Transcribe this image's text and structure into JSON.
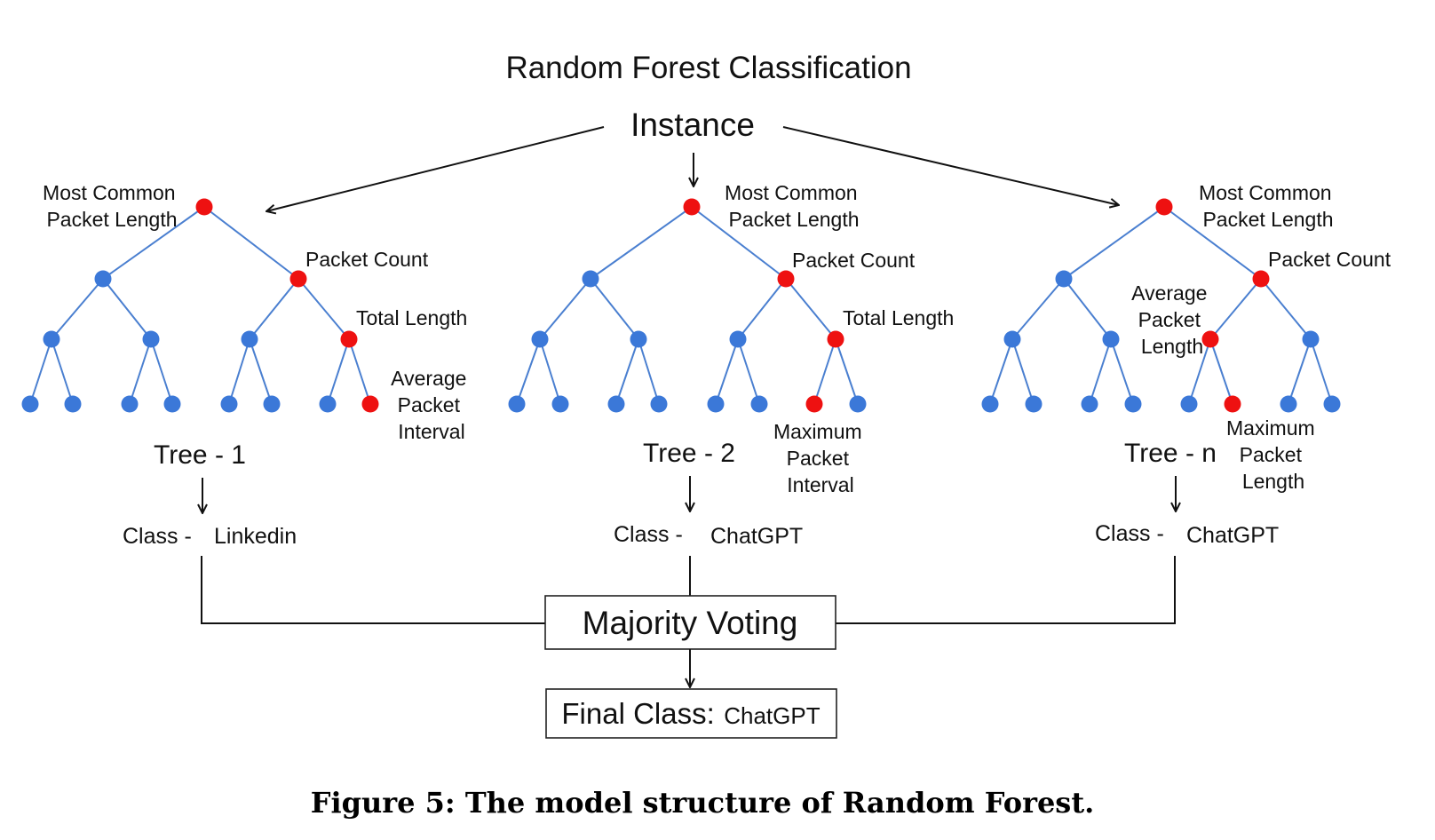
{
  "title": "Random Forest Classification",
  "instance_label": "Instance",
  "colors": {
    "path_node": "#ee1111",
    "other_node": "#3b78d8",
    "edge": "#4a7fd0"
  },
  "trees": [
    {
      "name": "Tree - 1",
      "labels": {
        "root": [
          "Most Common",
          "Packet Length"
        ],
        "second": [
          "Packet Count"
        ],
        "third": [
          "Total Length"
        ],
        "leaf": [
          "Average",
          "Packet",
          "Interval"
        ]
      },
      "class_prefix": "Class -",
      "class_value": "Linkedin"
    },
    {
      "name": "Tree - 2",
      "labels": {
        "root": [
          "Most Common",
          "Packet Length"
        ],
        "second": [
          "Packet Count"
        ],
        "third": [
          "Total Length"
        ],
        "leaf": [
          "Maximum",
          "Packet",
          "Interval"
        ]
      },
      "class_prefix": "Class -",
      "class_value": "ChatGPT"
    },
    {
      "name": "Tree - n",
      "labels": {
        "root": [
          "Most Common",
          "Packet Length"
        ],
        "second": [
          "Packet Count"
        ],
        "third": [
          "Average",
          "Packet",
          "Length"
        ],
        "leaf": [
          "Maximum",
          "Packet",
          "Length"
        ]
      },
      "class_prefix": "Class -",
      "class_value": "ChatGPT"
    }
  ],
  "voting_label": "Majority Voting",
  "final_prefix": "Final Class:",
  "final_value": "ChatGPT",
  "caption": "Figure 5: The model structure of Random Forest."
}
